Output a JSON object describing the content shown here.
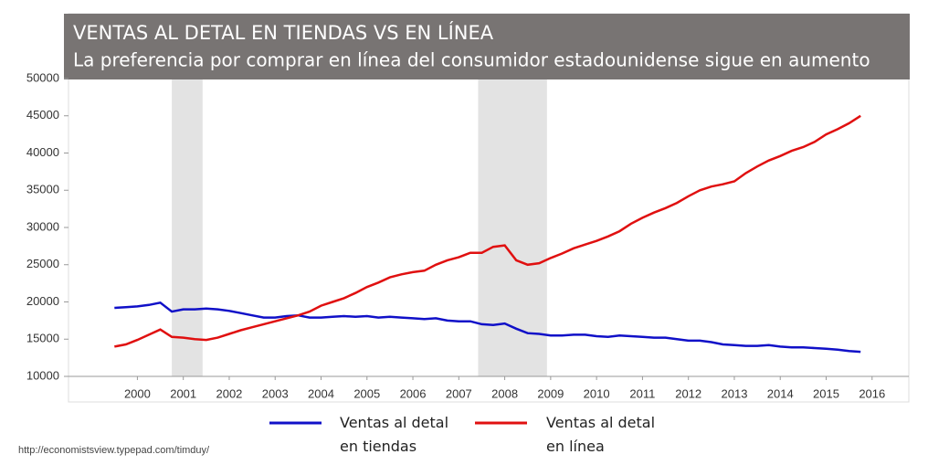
{
  "chart_data": {
    "type": "line",
    "title": "VENTAS AL DETAL EN TIENDAS VS EN LÍNEA",
    "subtitle": "La preferencia por comprar en línea del consumidor estadounidense sigue en aumento",
    "source": "http://economistsview.typepad.com/timduy/",
    "x": [
      2000,
      2000.25,
      2000.5,
      2000.75,
      2001,
      2001.25,
      2001.5,
      2001.75,
      2002,
      2002.25,
      2002.5,
      2002.75,
      2003,
      2003.25,
      2003.5,
      2003.75,
      2004,
      2004.25,
      2004.5,
      2004.75,
      2005,
      2005.25,
      2005.5,
      2005.75,
      2006,
      2006.25,
      2006.5,
      2006.75,
      2007,
      2007.25,
      2007.5,
      2007.75,
      2008,
      2008.25,
      2008.5,
      2008.75,
      2009,
      2009.25,
      2009.5,
      2009.75,
      2010,
      2010.25,
      2010.5,
      2010.75,
      2011,
      2011.25,
      2011.5,
      2011.75,
      2012,
      2012.25,
      2012.5,
      2012.75,
      2013,
      2013.25,
      2013.5,
      2013.75,
      2014,
      2014.25,
      2014.5,
      2014.75,
      2015,
      2015.25,
      2015.5,
      2015.75,
      2016,
      2016.25
    ],
    "series": [
      {
        "name": "Ventas al detal en tiendas",
        "color": "#1010c8",
        "values": [
          19200,
          19300,
          19400,
          19600,
          19900,
          18700,
          19000,
          19000,
          19100,
          19000,
          18800,
          18500,
          18200,
          17900,
          17900,
          18100,
          18200,
          17900,
          17900,
          18000,
          18100,
          18000,
          18100,
          17900,
          18000,
          17900,
          17800,
          17700,
          17800,
          17500,
          17400,
          17400,
          17000,
          16900,
          17100,
          16400,
          15800,
          15700,
          15500,
          15500,
          15600,
          15600,
          15400,
          15300,
          15500,
          15400,
          15300,
          15200,
          15200,
          15000,
          14800,
          14800,
          14600,
          14300,
          14200,
          14100,
          14100,
          14200,
          14000,
          13900,
          13900,
          13800,
          13700,
          13600,
          13400,
          13300
        ]
      },
      {
        "name": "Ventas al detal en línea",
        "color": "#e01010",
        "values": [
          14000,
          14300,
          14900,
          15600,
          16300,
          15300,
          15200,
          15000,
          14900,
          15200,
          15700,
          16200,
          16600,
          17000,
          17400,
          17800,
          18200,
          18700,
          19500,
          20000,
          20500,
          21200,
          22000,
          22600,
          23300,
          23700,
          24000,
          24200,
          25000,
          25600,
          26000,
          26600,
          26600,
          27400,
          27600,
          25600,
          25000,
          25200,
          25900,
          26500,
          27200,
          27700,
          28200,
          28800,
          29500,
          30500,
          31300,
          32000,
          32600,
          33300,
          34200,
          35000,
          35500,
          35800,
          36200,
          37300,
          38200,
          39000,
          39600,
          40300,
          40800,
          41500,
          42500,
          43200,
          44000,
          45000
        ]
      }
    ],
    "recessions": [
      [
        2001.25,
        2001.92
      ],
      [
        2007.92,
        2009.42
      ]
    ],
    "xlim": [
      1999,
      2017.3
    ],
    "xticks": [
      {
        "value": 2000.5,
        "label": "2000"
      },
      {
        "value": 2001.5,
        "label": "2001"
      },
      {
        "value": 2002.5,
        "label": "2002"
      },
      {
        "value": 2003.5,
        "label": "2003"
      },
      {
        "value": 2004.5,
        "label": "2004"
      },
      {
        "value": 2005.5,
        "label": "2005"
      },
      {
        "value": 2006.5,
        "label": "2006"
      },
      {
        "value": 2007.5,
        "label": "2007"
      },
      {
        "value": 2008.5,
        "label": "2008"
      },
      {
        "value": 2009.5,
        "label": "2009"
      },
      {
        "value": 2010.5,
        "label": "2010"
      },
      {
        "value": 2011.5,
        "label": "2011"
      },
      {
        "value": 2012.5,
        "label": "2012"
      },
      {
        "value": 2013.5,
        "label": "2013"
      },
      {
        "value": 2014.5,
        "label": "2014"
      },
      {
        "value": 2015.5,
        "label": "2015"
      },
      {
        "value": 2016.5,
        "label": "2016"
      }
    ],
    "ylim": [
      10000,
      50000
    ],
    "yticks": [
      10000,
      15000,
      20000,
      25000,
      30000,
      35000,
      40000,
      45000,
      50000
    ],
    "grid": false
  }
}
